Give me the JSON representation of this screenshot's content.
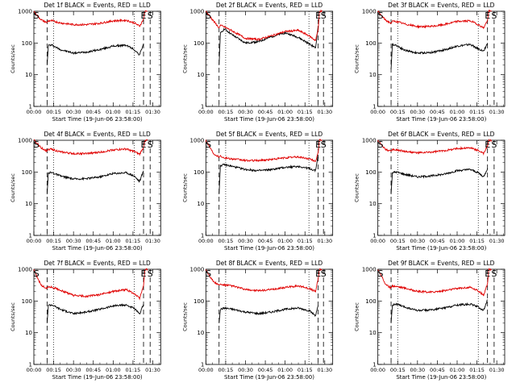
{
  "colors": {
    "events": "#000000",
    "lld": "#e00000",
    "background": "#ffffff"
  },
  "chart_data": [
    {
      "type": "line",
      "title": "Det 1f BLACK = Events, RED = LLD",
      "ylabel": "Counts/sec",
      "xlabel": "Start Time (19-Jun-06 23:58:00)",
      "xticks": [
        "00:00",
        "00:15",
        "00:30",
        "00:45",
        "01:00",
        "01:15",
        "01:30"
      ],
      "yticks": [
        "1",
        "10",
        "100",
        "1000"
      ],
      "ylim": [
        1,
        1000
      ],
      "yscale": "log",
      "markers": [
        {
          "label": "S",
          "t": 2
        },
        {
          "label": "E",
          "t": 83
        },
        {
          "label": "S",
          "t": 88
        }
      ],
      "dashed_lines": [
        10,
        83,
        88
      ],
      "dotted_lines": [
        15,
        76
      ],
      "series": [
        {
          "name": "Events",
          "color": "#000000",
          "x": [
            10,
            11,
            14,
            20,
            30,
            40,
            50,
            60,
            70,
            76,
            80,
            83
          ],
          "values": [
            20,
            85,
            85,
            62,
            48,
            52,
            62,
            80,
            85,
            62,
            42,
            95
          ]
        },
        {
          "name": "LLD",
          "color": "#e00000",
          "x": [
            0,
            3,
            6,
            10,
            11,
            14,
            20,
            30,
            40,
            50,
            60,
            70,
            76,
            80,
            83,
            84,
            86
          ],
          "values": [
            1000,
            700,
            520,
            440,
            500,
            500,
            430,
            380,
            380,
            420,
            500,
            520,
            430,
            340,
            560,
            1000,
            1000
          ]
        }
      ]
    },
    {
      "type": "line",
      "title": "Det 2f BLACK = Events, RED = LLD",
      "ylabel": "Counts/sec",
      "xlabel": "Start Time (19-Jun-06 23:58:00)",
      "xticks": [
        "00:00",
        "00:15",
        "00:30",
        "00:45",
        "01:00",
        "01:15",
        "01:30"
      ],
      "yticks": [
        "1",
        "10",
        "100",
        "1000"
      ],
      "ylim": [
        1,
        1000
      ],
      "yscale": "log",
      "markers": [
        {
          "label": "S",
          "t": 2
        },
        {
          "label": "E",
          "t": 85
        },
        {
          "label": "S",
          "t": 89
        }
      ],
      "dashed_lines": [
        10,
        85,
        89
      ],
      "dotted_lines": [
        15,
        78
      ],
      "series": [
        {
          "name": "Events",
          "color": "#000000",
          "x": [
            10,
            11,
            14,
            20,
            30,
            40,
            50,
            60,
            70,
            78,
            83,
            85
          ],
          "values": [
            20,
            200,
            280,
            180,
            100,
            110,
            160,
            210,
            150,
            95,
            70,
            350
          ]
        },
        {
          "name": "LLD",
          "color": "#e00000",
          "x": [
            0,
            3,
            6,
            10,
            11,
            14,
            20,
            30,
            40,
            50,
            60,
            70,
            78,
            83,
            85,
            86,
            88
          ],
          "values": [
            1000,
            700,
            480,
            300,
            360,
            320,
            240,
            140,
            130,
            170,
            230,
            250,
            170,
            120,
            260,
            1000,
            1000
          ]
        }
      ]
    },
    {
      "type": "line",
      "title": "Det 3f BLACK = Events, RED = LLD",
      "ylabel": "Counts/sec",
      "xlabel": "Start Time (19-Jun-06 23:58:00)",
      "xticks": [
        "00:00",
        "00:15",
        "00:30",
        "00:45",
        "01:00",
        "01:15",
        "01:30"
      ],
      "yticks": [
        "1",
        "10",
        "100",
        "1000"
      ],
      "ylim": [
        1,
        1000
      ],
      "yscale": "log",
      "markers": [
        {
          "label": "S",
          "t": 2
        },
        {
          "label": "E",
          "t": 83
        },
        {
          "label": "S",
          "t": 88
        }
      ],
      "dashed_lines": [
        10,
        83,
        88
      ],
      "dotted_lines": [
        15,
        76
      ],
      "series": [
        {
          "name": "Events",
          "color": "#000000",
          "x": [
            10,
            11,
            14,
            20,
            30,
            40,
            50,
            60,
            70,
            76,
            80,
            83
          ],
          "values": [
            15,
            90,
            85,
            60,
            48,
            50,
            60,
            80,
            90,
            65,
            55,
            100
          ]
        },
        {
          "name": "LLD",
          "color": "#e00000",
          "x": [
            0,
            3,
            6,
            10,
            11,
            14,
            20,
            30,
            40,
            50,
            60,
            70,
            76,
            80,
            83,
            84,
            86
          ],
          "values": [
            1000,
            700,
            520,
            420,
            480,
            480,
            400,
            330,
            330,
            380,
            480,
            500,
            380,
            300,
            520,
            1000,
            1000
          ]
        }
      ]
    },
    {
      "type": "line",
      "title": "Det 4f BLACK = Events, RED = LLD",
      "ylabel": "Counts/sec",
      "xlabel": "Start Time (19-Jun-06 23:58:00)",
      "xticks": [
        "00:00",
        "00:15",
        "00:30",
        "00:45",
        "01:00",
        "01:15",
        "01:30"
      ],
      "yticks": [
        "1",
        "10",
        "100",
        "1000"
      ],
      "ylim": [
        1,
        1000
      ],
      "yscale": "log",
      "markers": [
        {
          "label": "S",
          "t": 2
        },
        {
          "label": "E",
          "t": 83
        },
        {
          "label": "S",
          "t": 88
        }
      ],
      "dashed_lines": [
        10,
        83,
        88
      ],
      "dotted_lines": [
        15,
        76
      ],
      "series": [
        {
          "name": "Events",
          "color": "#000000",
          "x": [
            10,
            11,
            14,
            20,
            30,
            40,
            50,
            60,
            70,
            76,
            80,
            83
          ],
          "values": [
            20,
            95,
            95,
            75,
            60,
            62,
            70,
            90,
            95,
            75,
            50,
            110
          ]
        },
        {
          "name": "LLD",
          "color": "#e00000",
          "x": [
            0,
            3,
            6,
            10,
            11,
            14,
            20,
            30,
            40,
            50,
            60,
            70,
            76,
            80,
            83,
            84,
            86
          ],
          "values": [
            1000,
            750,
            560,
            460,
            520,
            520,
            430,
            380,
            380,
            420,
            500,
            530,
            440,
            360,
            600,
            1000,
            1000
          ]
        }
      ]
    },
    {
      "type": "line",
      "title": "Det 5f BLACK = Events, RED = LLD",
      "ylabel": "Counts/sec",
      "xlabel": "Start Time (19-Jun-06 23:58:00)",
      "xticks": [
        "00:00",
        "00:15",
        "00:30",
        "00:45",
        "01:00",
        "01:15",
        "01:30"
      ],
      "yticks": [
        "1",
        "10",
        "100",
        "1000"
      ],
      "ylim": [
        1,
        1000
      ],
      "yscale": "log",
      "markers": [
        {
          "label": "S",
          "t": 2
        },
        {
          "label": "E",
          "t": 85
        },
        {
          "label": "S",
          "t": 89
        }
      ],
      "dashed_lines": [
        10,
        85,
        89
      ],
      "dotted_lines": [
        15,
        78
      ],
      "series": [
        {
          "name": "Events",
          "color": "#000000",
          "x": [
            10,
            11,
            14,
            20,
            30,
            40,
            50,
            60,
            70,
            78,
            83,
            85
          ],
          "values": [
            20,
            160,
            170,
            150,
            120,
            110,
            120,
            140,
            150,
            130,
            110,
            350
          ]
        },
        {
          "name": "LLD",
          "color": "#e00000",
          "x": [
            0,
            3,
            6,
            10,
            11,
            14,
            20,
            30,
            40,
            50,
            60,
            70,
            78,
            83,
            85,
            86,
            88
          ],
          "values": [
            1000,
            600,
            380,
            300,
            320,
            280,
            260,
            230,
            230,
            250,
            280,
            300,
            260,
            220,
            400,
            1000,
            1000
          ]
        }
      ]
    },
    {
      "type": "line",
      "title": "Det 6f BLACK = Events, RED = LLD",
      "ylabel": "Counts/sec",
      "xlabel": "Start Time (19-Jun-06 23:58:00)",
      "xticks": [
        "00:00",
        "00:15",
        "00:30",
        "00:45",
        "01:00",
        "01:15",
        "01:30"
      ],
      "yticks": [
        "1",
        "10",
        "100",
        "1000"
      ],
      "ylim": [
        1,
        1000
      ],
      "yscale": "log",
      "markers": [
        {
          "label": "S",
          "t": 2
        },
        {
          "label": "E",
          "t": 83
        },
        {
          "label": "S",
          "t": 88
        }
      ],
      "dashed_lines": [
        10,
        83,
        88
      ],
      "dotted_lines": [
        15,
        76
      ],
      "series": [
        {
          "name": "Events",
          "color": "#000000",
          "x": [
            10,
            11,
            14,
            20,
            30,
            40,
            50,
            60,
            70,
            76,
            80,
            83
          ],
          "values": [
            20,
            95,
            100,
            85,
            70,
            75,
            85,
            110,
            120,
            95,
            70,
            130
          ]
        },
        {
          "name": "LLD",
          "color": "#e00000",
          "x": [
            0,
            3,
            6,
            10,
            11,
            14,
            20,
            30,
            40,
            50,
            60,
            70,
            76,
            80,
            83,
            84,
            86
          ],
          "values": [
            1000,
            700,
            520,
            450,
            500,
            500,
            450,
            400,
            420,
            470,
            550,
            580,
            480,
            380,
            650,
            1000,
            1000
          ]
        }
      ]
    },
    {
      "type": "line",
      "title": "Det 7f BLACK = Events, RED = LLD",
      "ylabel": "Counts/sec",
      "xlabel": "Start Time (19-Jun-06 23:58:00)",
      "xticks": [
        "00:00",
        "00:15",
        "00:30",
        "00:45",
        "01:00",
        "01:15",
        "01:30"
      ],
      "yticks": [
        "1",
        "10",
        "100",
        "1000"
      ],
      "ylim": [
        1,
        1000
      ],
      "yscale": "log",
      "markers": [
        {
          "label": "S",
          "t": 2
        },
        {
          "label": "E",
          "t": 83
        },
        {
          "label": "S",
          "t": 88
        }
      ],
      "dashed_lines": [
        10,
        83,
        88
      ],
      "dotted_lines": [
        15,
        76
      ],
      "series": [
        {
          "name": "Events",
          "color": "#000000",
          "x": [
            10,
            11,
            14,
            20,
            30,
            40,
            50,
            60,
            70,
            76,
            80,
            83
          ],
          "values": [
            20,
            75,
            75,
            55,
            40,
            45,
            55,
            70,
            75,
            58,
            38,
            80
          ]
        },
        {
          "name": "LLD",
          "color": "#e00000",
          "x": [
            0,
            3,
            6,
            10,
            11,
            14,
            20,
            30,
            40,
            50,
            60,
            70,
            76,
            80,
            83,
            84,
            86
          ],
          "values": [
            1000,
            500,
            300,
            250,
            280,
            270,
            220,
            150,
            140,
            160,
            200,
            230,
            170,
            120,
            300,
            1000,
            1000
          ]
        }
      ]
    },
    {
      "type": "line",
      "title": "Det 8f BLACK = Events, RED = LLD",
      "ylabel": "Counts/sec",
      "xlabel": "Start Time (19-Jun-06 23:58:00)",
      "xticks": [
        "00:00",
        "00:15",
        "00:30",
        "00:45",
        "01:00",
        "01:15",
        "01:30"
      ],
      "yticks": [
        "1",
        "10",
        "100",
        "1000"
      ],
      "ylim": [
        1,
        1000
      ],
      "yscale": "log",
      "markers": [
        {
          "label": "S",
          "t": 2
        },
        {
          "label": "E",
          "t": 85
        },
        {
          "label": "S",
          "t": 89
        }
      ],
      "dashed_lines": [
        10,
        85,
        89
      ],
      "dotted_lines": [
        15,
        78
      ],
      "series": [
        {
          "name": "Events",
          "color": "#000000",
          "x": [
            10,
            11,
            14,
            20,
            30,
            40,
            50,
            60,
            70,
            78,
            83,
            85
          ],
          "values": [
            20,
            55,
            60,
            55,
            45,
            40,
            45,
            55,
            60,
            50,
            35,
            70
          ]
        },
        {
          "name": "LLD",
          "color": "#e00000",
          "x": [
            0,
            3,
            6,
            10,
            11,
            14,
            20,
            30,
            40,
            50,
            60,
            70,
            78,
            83,
            85,
            86,
            88
          ],
          "values": [
            1000,
            600,
            400,
            320,
            330,
            320,
            300,
            230,
            210,
            230,
            270,
            300,
            250,
            200,
            500,
            1000,
            1000
          ]
        }
      ]
    },
    {
      "type": "line",
      "title": "Det 9f BLACK = Events, RED = LLD",
      "ylabel": "Counts/sec",
      "xlabel": "Start Time (19-Jun-06 23:58:00)",
      "xticks": [
        "00:00",
        "00:15",
        "00:30",
        "00:45",
        "01:00",
        "01:15",
        "01:30"
      ],
      "yticks": [
        "1",
        "10",
        "100",
        "1000"
      ],
      "ylim": [
        1,
        1000
      ],
      "yscale": "log",
      "markers": [
        {
          "label": "S",
          "t": 2
        },
        {
          "label": "E",
          "t": 83
        },
        {
          "label": "S",
          "t": 88
        }
      ],
      "dashed_lines": [
        10,
        83,
        88
      ],
      "dotted_lines": [
        15,
        76
      ],
      "series": [
        {
          "name": "Events",
          "color": "#000000",
          "x": [
            10,
            11,
            14,
            20,
            30,
            40,
            50,
            60,
            70,
            76,
            80,
            83
          ],
          "values": [
            20,
            75,
            80,
            65,
            50,
            52,
            60,
            75,
            80,
            65,
            50,
            110
          ]
        },
        {
          "name": "LLD",
          "color": "#e00000",
          "x": [
            0,
            3,
            6,
            10,
            11,
            14,
            20,
            30,
            40,
            50,
            60,
            70,
            76,
            80,
            83,
            84,
            86
          ],
          "values": [
            1000,
            600,
            320,
            260,
            300,
            290,
            260,
            200,
            190,
            210,
            250,
            270,
            210,
            150,
            350,
            1000,
            1000
          ]
        }
      ]
    }
  ]
}
